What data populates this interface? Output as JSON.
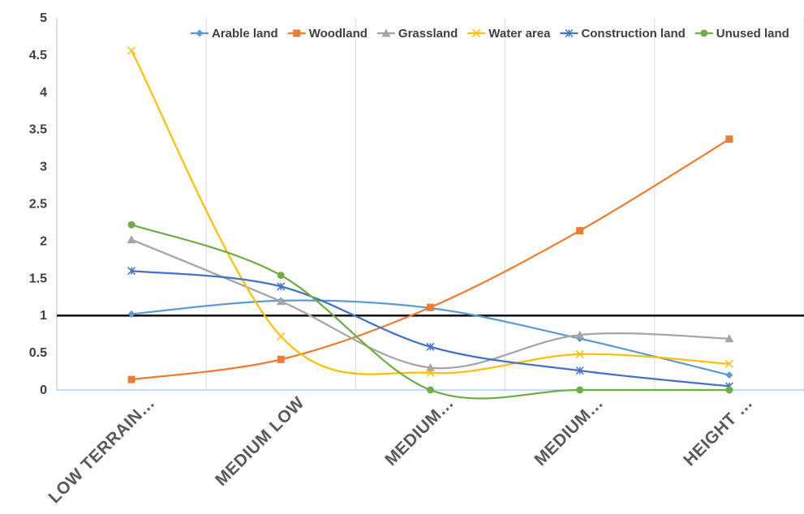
{
  "chart_data": {
    "type": "line",
    "title": "",
    "xlabel": "",
    "ylabel": "",
    "categories": [
      "LOW TERRAIN…",
      "MEDIUM LOW",
      "MEDIUM…",
      "MEDIUM…",
      "HEIGHT …"
    ],
    "ylim": [
      0,
      5
    ],
    "yticks": [
      "0",
      "0.5",
      "1",
      "1.5",
      "2",
      "2.5",
      "3",
      "3.5",
      "4",
      "4.5",
      "5"
    ],
    "reference_line": 1,
    "grid": "vertical",
    "legend_position": "top-right",
    "smooth": true,
    "series": [
      {
        "name": "Arable land",
        "color": "#5B9BD5",
        "marker": "diamond",
        "values": [
          1.02,
          1.2,
          1.1,
          0.69,
          0.2
        ]
      },
      {
        "name": "Woodland",
        "color": "#ED7D31",
        "marker": "square",
        "values": [
          0.14,
          0.41,
          1.11,
          2.14,
          3.37
        ]
      },
      {
        "name": "Grassland",
        "color": "#A5A5A5",
        "marker": "triangle",
        "values": [
          2.02,
          1.19,
          0.3,
          0.74,
          0.69
        ]
      },
      {
        "name": "Water area",
        "color": "#FFC000",
        "marker": "x",
        "values": [
          4.56,
          0.72,
          0.23,
          0.48,
          0.35
        ]
      },
      {
        "name": "Construction land",
        "color": "#4472C4",
        "marker": "star",
        "values": [
          1.6,
          1.39,
          0.58,
          0.26,
          0.05
        ]
      },
      {
        "name": "Unused land",
        "color": "#70AD47",
        "marker": "circle",
        "values": [
          2.22,
          1.54,
          0.0,
          0.0,
          0.0
        ]
      }
    ]
  }
}
